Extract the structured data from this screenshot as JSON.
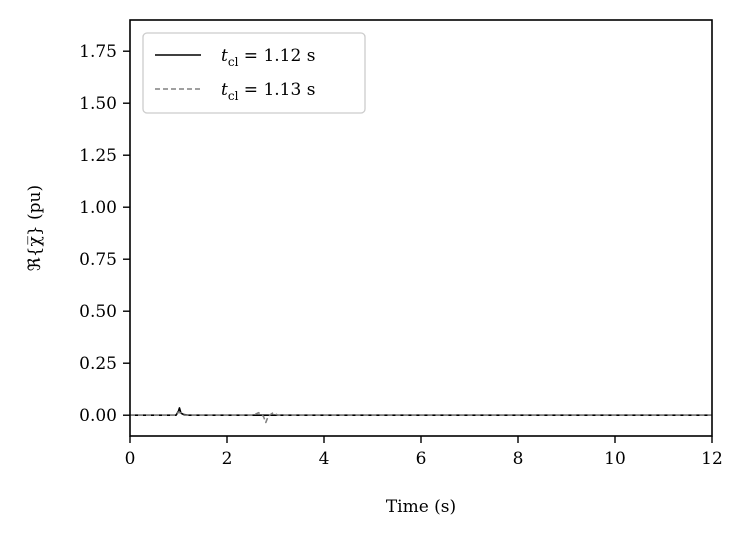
{
  "chart_data": {
    "type": "line",
    "title": "",
    "xlabel": "Time (s)",
    "ylabel": "ℜ{χ̅} (pu)",
    "xlim": [
      0,
      12
    ],
    "ylim": [
      -0.1,
      1.9
    ],
    "xticks": [
      0,
      2,
      4,
      6,
      8,
      10,
      12
    ],
    "xtick_labels": [
      "0",
      "2",
      "4",
      "6",
      "8",
      "10",
      "12"
    ],
    "yticks": [
      0.0,
      0.25,
      0.5,
      0.75,
      1.0,
      1.25,
      1.5,
      1.75
    ],
    "ytick_labels": [
      "0.00",
      "0.25",
      "0.50",
      "0.75",
      "1.00",
      "1.25",
      "1.50",
      "1.75"
    ],
    "grid": false,
    "legend_position": "top-left",
    "series": [
      {
        "name": "t_cl = 1.12 s",
        "legend_var": "t",
        "legend_sub": "cl",
        "legend_rest": " = 1.12 s",
        "color": "#000000",
        "dash": "solid",
        "x": [
          0,
          0.95,
          1.0,
          1.02,
          1.05,
          1.1,
          1.2,
          12
        ],
        "y": [
          0,
          0,
          0.02,
          0.035,
          0.01,
          0.004,
          0,
          0
        ]
      },
      {
        "name": "t_cl = 1.13 s",
        "legend_var": "t",
        "legend_sub": "cl",
        "legend_rest": " = 1.13 s",
        "color": "#808080",
        "dash": "dashed",
        "x": [
          0,
          0.95,
          1.0,
          1.05,
          1.1,
          2.55,
          2.65,
          2.75,
          2.8,
          2.85,
          2.95,
          3.05,
          12
        ],
        "y": [
          0,
          0,
          0.015,
          0.01,
          0,
          0,
          0.012,
          -0.005,
          -0.035,
          -0.005,
          0.012,
          0,
          0
        ]
      }
    ]
  }
}
